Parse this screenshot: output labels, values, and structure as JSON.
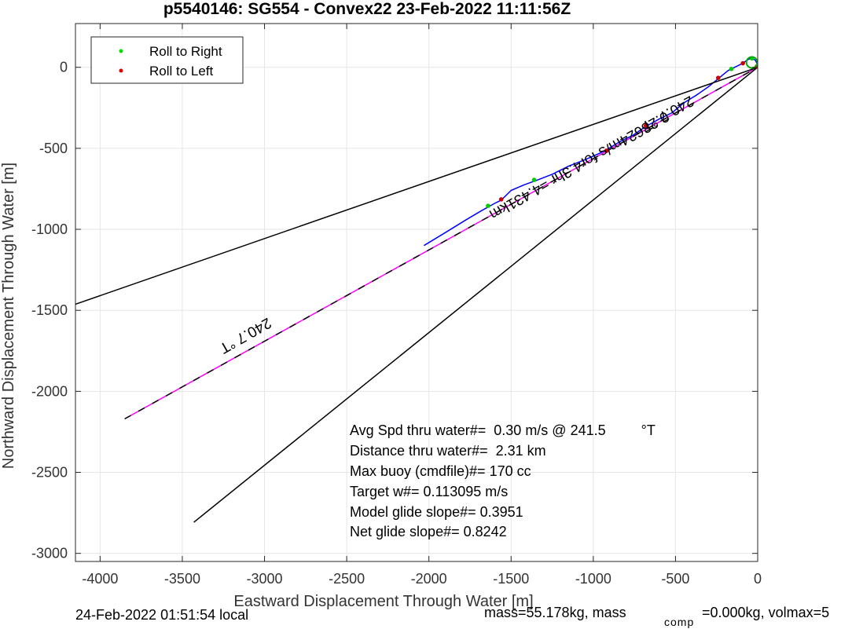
{
  "chart_data": {
    "type": "line",
    "title": "p5540146: SG554 - Convex22 23-Feb-2022 11:11:56Z",
    "xlabel": "Eastward Displacement Through Water [m]",
    "ylabel": "Northward Displacement Through Water [m]",
    "xlim": [
      -4150,
      0
    ],
    "ylim": [
      -3050,
      270
    ],
    "xticks": [
      -4000,
      -3500,
      -3000,
      -2500,
      -2000,
      -1500,
      -1000,
      -500,
      0
    ],
    "yticks": [
      0,
      -500,
      -1000,
      -1500,
      -2000,
      -2500,
      -3000
    ],
    "grid": true,
    "legend_position": "top-left",
    "legend": [
      {
        "label": "Roll to Right",
        "color": "#00dd00"
      },
      {
        "label": "Roll to Left",
        "color": "#dd0000"
      }
    ],
    "series": [
      {
        "color": "#0000ff",
        "points": [
          [
            -2030,
            -1100
          ],
          [
            -1900,
            -1020
          ],
          [
            -1780,
            -945
          ],
          [
            -1680,
            -885
          ],
          [
            -1600,
            -840
          ],
          [
            -1560,
            -820
          ],
          [
            -1500,
            -760
          ],
          [
            -1420,
            -725
          ],
          [
            -1350,
            -700
          ],
          [
            -1250,
            -660
          ],
          [
            -1150,
            -610
          ],
          [
            -1050,
            -570
          ],
          [
            -960,
            -530
          ],
          [
            -920,
            -510
          ],
          [
            -840,
            -460
          ],
          [
            -760,
            -420
          ],
          [
            -680,
            -365
          ],
          [
            -600,
            -320
          ],
          [
            -520,
            -280
          ],
          [
            -450,
            -220
          ],
          [
            -370,
            -170
          ],
          [
            -300,
            -120
          ],
          [
            -240,
            -70
          ],
          [
            -180,
            -20
          ],
          [
            -100,
            20
          ],
          [
            -70,
            40
          ],
          [
            -55,
            50
          ],
          [
            -35,
            55
          ],
          [
            -15,
            45
          ],
          [
            -5,
            25
          ],
          [
            0,
            0
          ]
        ]
      },
      {
        "color": "#ff00ff",
        "points": [
          [
            -3850,
            -2170
          ],
          [
            0,
            0
          ]
        ]
      },
      {
        "color": "#000000",
        "dashed": true,
        "points": [
          [
            -3850,
            -2170
          ],
          [
            0,
            0
          ]
        ]
      },
      {
        "color": "#000000",
        "points": [
          [
            -4150,
            -1462
          ],
          [
            0,
            0
          ]
        ]
      },
      {
        "color": "#000000",
        "points": [
          [
            -3430,
            -2808
          ],
          [
            0,
            0
          ]
        ]
      }
    ],
    "roll_right_points": [
      [
        -1640,
        -855
      ],
      [
        -1360,
        -695
      ],
      [
        -160,
        -10
      ],
      [
        -35,
        55
      ]
    ],
    "roll_left_points": [
      [
        -1560,
        -815
      ],
      [
        -920,
        -515
      ],
      [
        -680,
        -360
      ],
      [
        -240,
        -65
      ],
      [
        -90,
        25
      ],
      [
        -5,
        5
      ]
    ],
    "annotations": [
      {
        "text": "240.7 °T",
        "x": -3130,
        "y": -1630,
        "rotation": 150.4
      },
      {
        "text": "240.7 °T",
        "x": -560,
        "y": -260,
        "rotation": 150.4
      },
      {
        "text": "0.28624m/s for4.3hr =4.431km",
        "x": -1100,
        "y": -580,
        "rotation": 150.4
      }
    ],
    "info_lines": [
      "Avg Spd thru water#=  0.30 m/s @ 241.5         °T",
      "Distance thru water#=  2.31 km",
      "Max buoy (cmdfile)#= 170 cc",
      "Target w#= 0.113095 m/s",
      "Model glide slope#= 0.3951",
      "Net glide slope#= 0.8242"
    ]
  },
  "footer": {
    "local_time": "24-Feb-2022 01:51:54 local",
    "mass_prefix": "mass=55.178kg, mass",
    "mass_subscript": "comp",
    "mass_suffix": "=0.000kg, volmax=5"
  }
}
